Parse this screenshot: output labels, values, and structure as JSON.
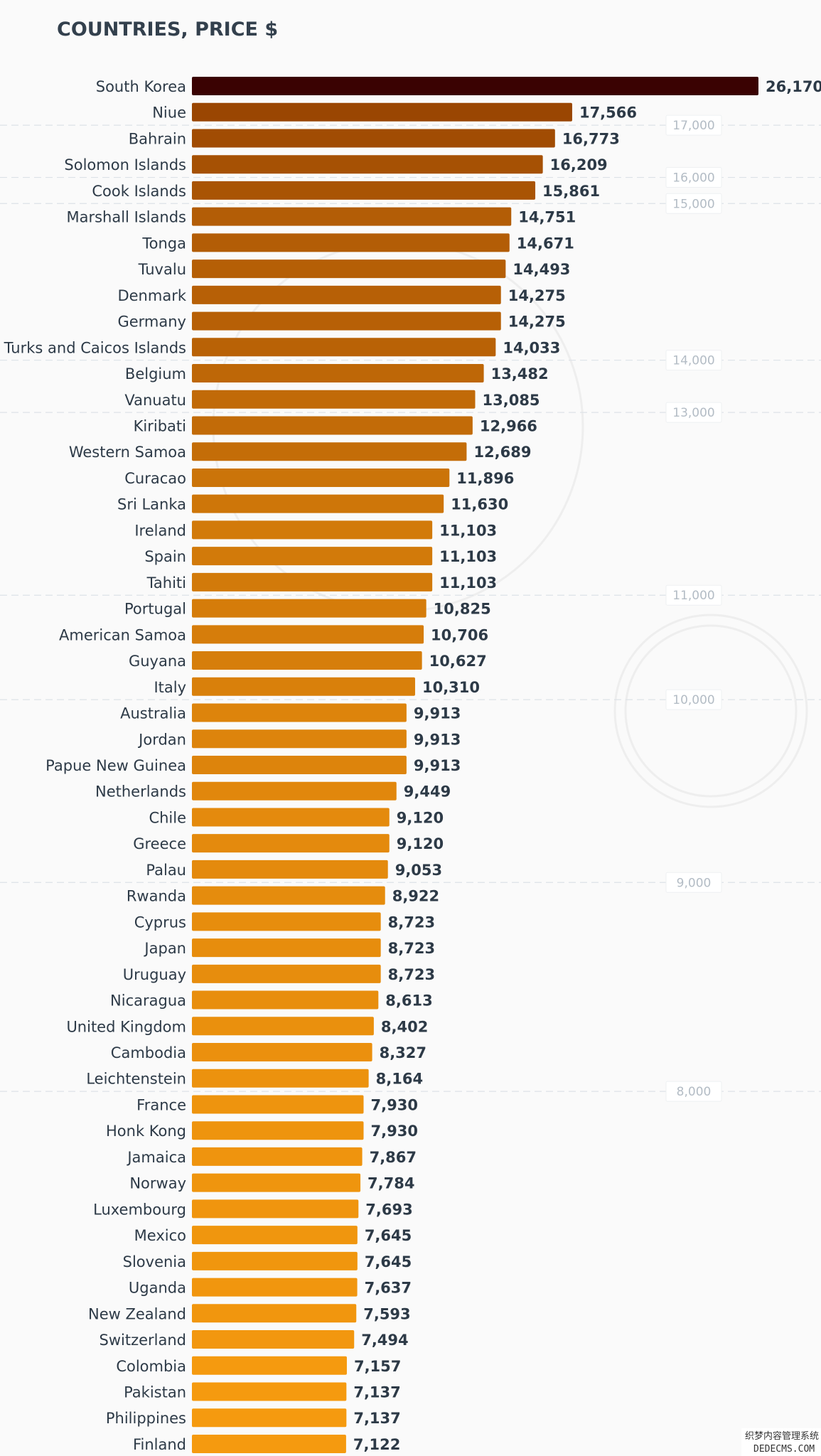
{
  "chart_data": {
    "type": "bar",
    "orientation": "horizontal",
    "title": "COUNTRIES, PRICE $",
    "categories": [
      "South Korea",
      "Niue",
      "Bahrain",
      "Solomon Islands",
      "Cook Islands",
      "Marshall Islands",
      "Tonga",
      "Tuvalu",
      "Denmark",
      "Germany",
      "Turks and Caicos Islands",
      "Belgium",
      "Vanuatu",
      "Kiribati",
      "Western Samoa",
      "Curacao",
      "Sri Lanka",
      "Ireland",
      "Spain",
      "Tahiti",
      "Portugal",
      "American Samoa",
      "Guyana",
      "Italy",
      "Australia",
      "Jordan",
      "Papue New Guinea",
      "Netherlands",
      "Chile",
      "Greece",
      "Palau",
      "Rwanda",
      "Cyprus",
      "Japan",
      "Uruguay",
      "Nicaragua",
      "United Kingdom",
      "Cambodia",
      "Leichtenstein",
      "France",
      "Honk Kong",
      "Jamaica",
      "Norway",
      "Luxembourg",
      "Mexico",
      "Slovenia",
      "Uganda",
      "New Zealand",
      "Switzerland",
      "Colombia",
      "Pakistan",
      "Philippines",
      "Finland"
    ],
    "values": [
      26170,
      17566,
      16773,
      16209,
      15861,
      14751,
      14671,
      14493,
      14275,
      14275,
      14033,
      13482,
      13085,
      12966,
      12689,
      11896,
      11630,
      11103,
      11103,
      11103,
      10825,
      10706,
      10627,
      10310,
      9913,
      9913,
      9913,
      9449,
      9120,
      9120,
      9053,
      8922,
      8723,
      8723,
      8723,
      8613,
      8402,
      8327,
      8164,
      7930,
      7930,
      7867,
      7784,
      7693,
      7645,
      7645,
      7637,
      7593,
      7494,
      7157,
      7137,
      7137,
      7122
    ],
    "value_labels": [
      "26,170",
      "17,566",
      "16,773",
      "16,209",
      "15,861",
      "14,751",
      "14,671",
      "14,493",
      "14,275",
      "14,275",
      "14,033",
      "13,482",
      "13,085",
      "12,966",
      "12,689",
      "11,896",
      "11,630",
      "11,103",
      "11,103",
      "11,103",
      "10,825",
      "10,706",
      "10,627",
      "10,310",
      "9,913",
      "9,913",
      "9,913",
      "9,449",
      "9,120",
      "9,120",
      "9,053",
      "8,922",
      "8,723",
      "8,723",
      "8,723",
      "8,613",
      "8,402",
      "8,327",
      "8,164",
      "7,930",
      "7,930",
      "7,867",
      "7,784",
      "7,693",
      "7,645",
      "7,645",
      "7,637",
      "7,593",
      "7,494",
      "7,157",
      "7,137",
      "7,137",
      "7,122"
    ],
    "reference_lines": [
      {
        "value": 17000,
        "label": "17,000"
      },
      {
        "value": 16000,
        "label": "16,000"
      },
      {
        "value": 15000,
        "label": "15,000"
      },
      {
        "value": 14000,
        "label": "14,000"
      },
      {
        "value": 13000,
        "label": "13,000"
      },
      {
        "value": 11000,
        "label": "11,000"
      },
      {
        "value": 10000,
        "label": "10,000"
      },
      {
        "value": 9000,
        "label": "9,000"
      },
      {
        "value": 8000,
        "label": "8,000"
      }
    ],
    "bar_color_range": {
      "max": "#3a0202",
      "high": "#9a4602",
      "low": "#f59a0f"
    },
    "xlim": [
      0,
      26170
    ],
    "grid": false,
    "legend": "none"
  },
  "watermark": {
    "text_line1": "织梦内容管理系统",
    "text_line2": "DEDECMS.COM"
  }
}
